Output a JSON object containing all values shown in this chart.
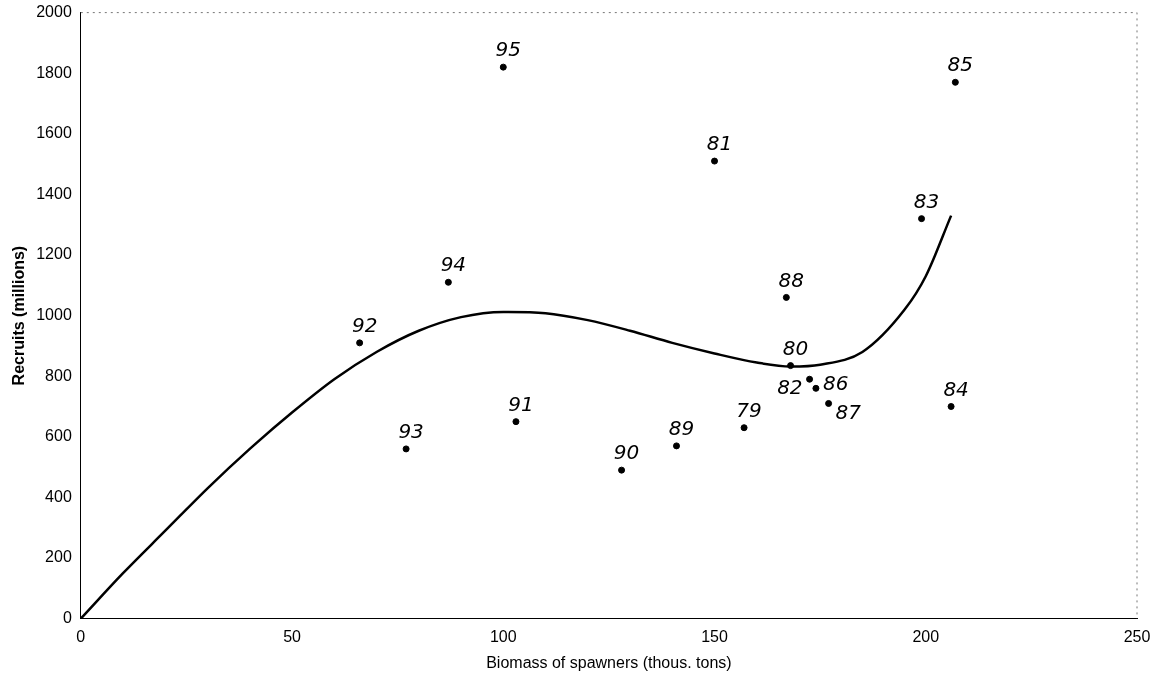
{
  "chart_data": {
    "type": "scatter",
    "xlabel": "Biomass of spawners (thous. tons)",
    "ylabel": "Recruits (millions)",
    "xlim": [
      0,
      250
    ],
    "xticks": [
      0,
      50,
      100,
      150,
      200,
      250
    ],
    "ylim": [
      0,
      2000
    ],
    "yticks": [
      0,
      200,
      400,
      600,
      800,
      1000,
      1200,
      1400,
      1600,
      1800,
      2000
    ],
    "grid": false,
    "legend": false,
    "series": [
      {
        "marker": "circle",
        "color": "#000000",
        "x": [
          157,
          168,
          150,
          172.5,
          199,
          206,
          207,
          174,
          177,
          167,
          141,
          128,
          103,
          66,
          77,
          87,
          100
        ],
        "values": [
          630,
          835,
          1510,
          790,
          1320,
          700,
          1770,
          760,
          710,
          1060,
          570,
          490,
          650,
          910,
          560,
          1110,
          1820
        ]
      },
      {
        "type": "line",
        "marker": "none",
        "color": "#000000",
        "x": [
          0,
          10,
          20,
          30,
          40,
          50,
          60,
          70,
          80,
          90,
          100,
          110,
          120,
          130,
          140,
          150,
          160,
          168,
          175,
          185,
          195,
          200,
          206
        ],
        "values": [
          0,
          150,
          290,
          430,
          560,
          680,
          790,
          880,
          950,
          995,
          1012,
          1008,
          985,
          950,
          910,
          875,
          845,
          832,
          838,
          880,
          1020,
          1130,
          1330
        ]
      }
    ],
    "annotations": [
      {
        "text": "79",
        "x": 157,
        "y": 630
      },
      {
        "text": "80",
        "x": 168,
        "y": 835
      },
      {
        "text": "81",
        "x": 150,
        "y": 1510
      },
      {
        "text": "82",
        "x": 172.5,
        "y": 790
      },
      {
        "text": "83",
        "x": 199,
        "y": 1320
      },
      {
        "text": "84",
        "x": 206,
        "y": 700
      },
      {
        "text": "85",
        "x": 207,
        "y": 1770
      },
      {
        "text": "86",
        "x": 174,
        "y": 760
      },
      {
        "text": "87",
        "x": 177,
        "y": 710
      },
      {
        "text": "88",
        "x": 167,
        "y": 1060
      },
      {
        "text": "89",
        "x": 141,
        "y": 570
      },
      {
        "text": "90",
        "x": 128,
        "y": 490
      },
      {
        "text": "91",
        "x": 103,
        "y": 650
      },
      {
        "text": "92",
        "x": 66,
        "y": 910
      },
      {
        "text": "93",
        "x": 77,
        "y": 560
      },
      {
        "text": "94",
        "x": 87,
        "y": 1110
      },
      {
        "text": "95",
        "x": 100,
        "y": 1820
      }
    ]
  }
}
